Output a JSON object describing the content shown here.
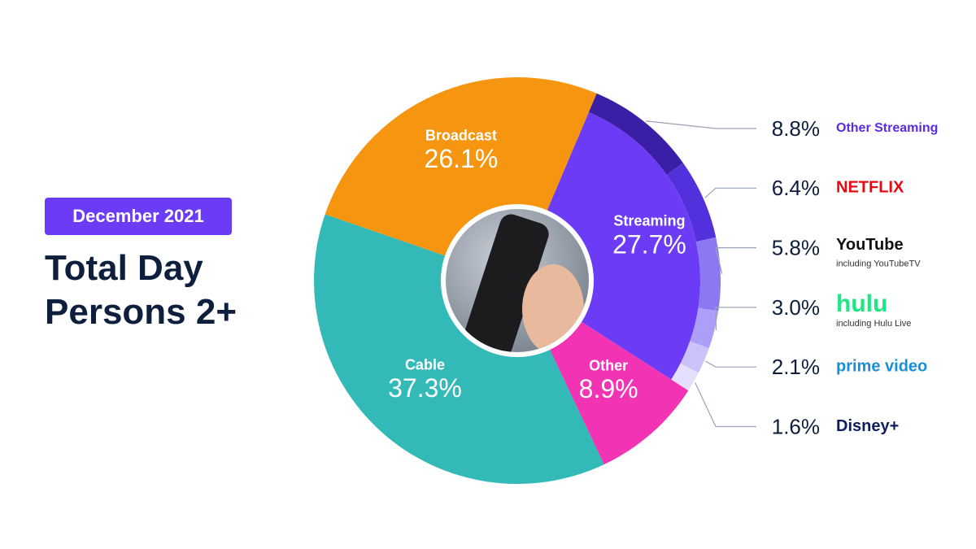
{
  "chart_data": {
    "type": "donut",
    "subtitle": "December 2021",
    "title": "Total Day Persons 2+",
    "categories": [
      "Streaming",
      "Other",
      "Cable",
      "Broadcast"
    ],
    "values": [
      27.7,
      8.9,
      37.3,
      26.1
    ],
    "value_labels": [
      "27.7%",
      "8.9%",
      "37.3%",
      "26.1%"
    ],
    "colors": [
      "#6c3bf5",
      "#f233b3",
      "#33bab8",
      "#f6950f"
    ],
    "breakdown": {
      "categories": [
        "Other Streaming",
        "NETFLIX",
        "YouTube",
        "hulu",
        "prime video",
        "Disney+"
      ],
      "notes": [
        null,
        null,
        "including YouTubeTV",
        "including Hulu Live",
        null,
        null
      ],
      "values": [
        8.8,
        6.4,
        5.8,
        3.0,
        2.1,
        1.6
      ],
      "value_labels": [
        "8.8%",
        "6.4%",
        "5.8%",
        "3.0%",
        "2.1%",
        "1.6%"
      ],
      "colors": [
        "#3a1ea6",
        "#5230dc",
        "#8b78f3",
        "#ad9ff7",
        "#cbc2fa",
        "#e4dffd"
      ],
      "label_colors": [
        "#5b2be0",
        "#e50914",
        "#111111",
        "#1ce783",
        "#1a8fd6",
        "#0e1f5b"
      ]
    }
  }
}
